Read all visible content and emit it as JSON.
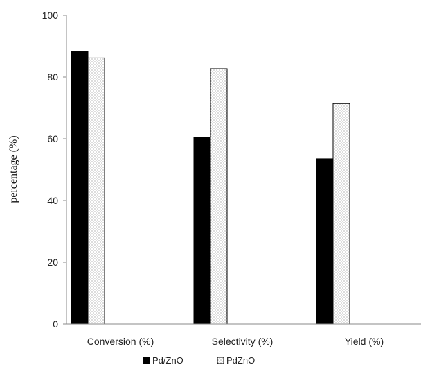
{
  "chart_data": {
    "type": "bar",
    "categories": [
      "Conversion (%)",
      "Selectivity (%)",
      "Yield (%)"
    ],
    "series": [
      {
        "name": "Pd/ZnO",
        "values": [
          88.2,
          60.5,
          53.5
        ],
        "color": "#000000",
        "pattern": "solid"
      },
      {
        "name": "PdZnO",
        "values": [
          86.2,
          82.7,
          71.4
        ],
        "color": "#ffffff",
        "pattern": "dotted"
      }
    ],
    "ylabel": "percentage (%)",
    "xlabel": "",
    "ylim": [
      0,
      100
    ],
    "yticks": [
      "0",
      "20",
      "40",
      "60",
      "80",
      "100"
    ],
    "grid": false,
    "legend_position": "bottom"
  }
}
